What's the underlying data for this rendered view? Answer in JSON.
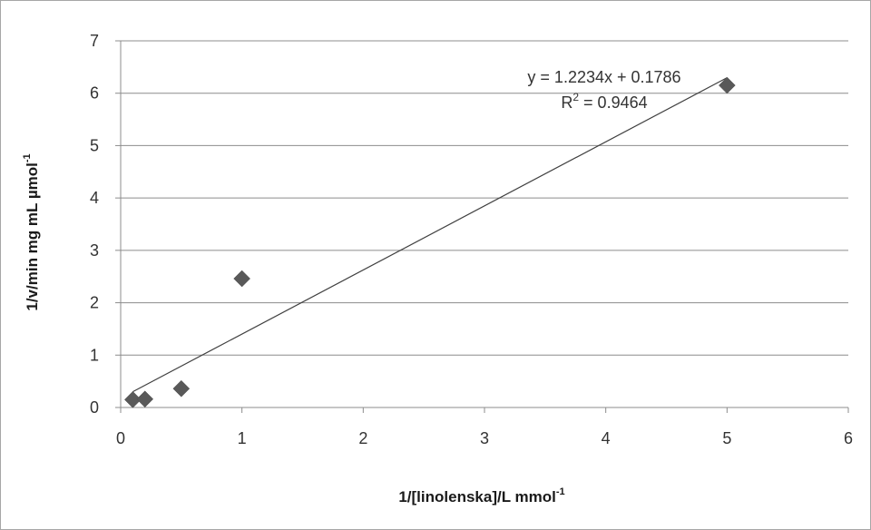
{
  "chart_data": {
    "type": "scatter",
    "title": "",
    "xlabel": {
      "main": "1/[linolenska]/L mmol",
      "sup": "-1"
    },
    "ylabel": {
      "main": "1/v/min mg mL µmol",
      "sup": "-1"
    },
    "xlim": [
      0,
      6
    ],
    "ylim": [
      0,
      7
    ],
    "xticks": [
      0,
      1,
      2,
      3,
      4,
      5,
      6
    ],
    "yticks": [
      0,
      1,
      2,
      3,
      4,
      5,
      6,
      7
    ],
    "grid": {
      "horizontal": true,
      "vertical": false
    },
    "points": [
      {
        "x": 0.1,
        "y": 0.15
      },
      {
        "x": 0.2,
        "y": 0.16
      },
      {
        "x": 0.5,
        "y": 0.36
      },
      {
        "x": 1.0,
        "y": 2.46
      },
      {
        "x": 5.0,
        "y": 6.15
      }
    ],
    "marker": "diamond",
    "marker_color": "#595959",
    "trendline": {
      "type": "linear",
      "slope": 1.2234,
      "intercept": 0.1786,
      "x_range": [
        0.1,
        5.0
      ],
      "color": "#404040",
      "equation": "y = 1.2234x + 0.1786",
      "r2_label": "R",
      "r2_sup": "2",
      "r2_value": " = 0.9464"
    }
  }
}
